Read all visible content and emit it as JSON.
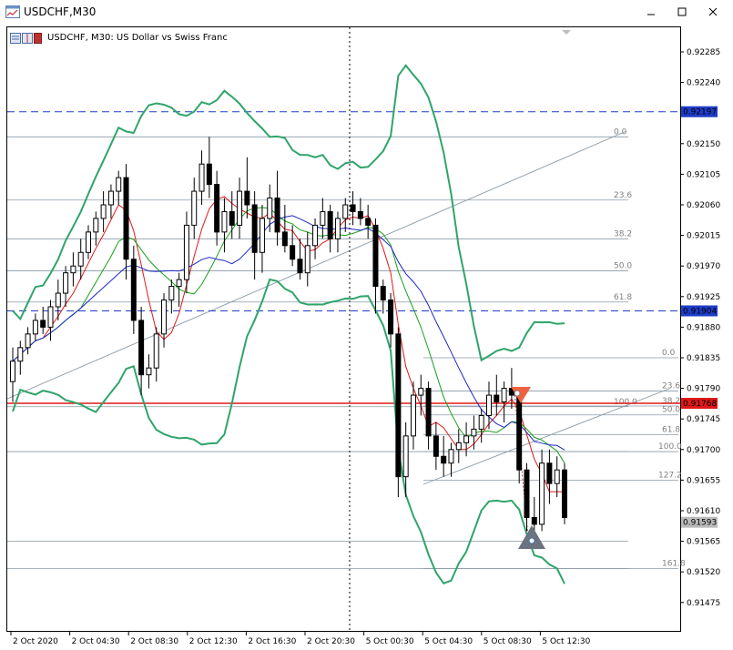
{
  "window": {
    "title": "USDCHF,M30"
  },
  "chart": {
    "header_text": "USDCHF, M30:  US Dollar vs Swiss Franc"
  },
  "chart_data": {
    "type": "candlestick",
    "symbol": "USDCHF",
    "timeframe": "M30",
    "y_ticks": [
      "0.92285",
      "0.92240",
      "0.92150",
      "0.92105",
      "0.92060",
      "0.92015",
      "0.91970",
      "0.91925",
      "0.91880",
      "0.91835",
      "0.91790",
      "0.91745",
      "0.91700",
      "0.91655",
      "0.91610",
      "0.91565",
      "0.91520",
      "0.91475"
    ],
    "x_ticks": [
      "2 Oct 2020",
      "2 Oct 04:30",
      "2 Oct 08:30",
      "2 Oct 12:30",
      "2 Oct 16:30",
      "2 Oct 20:30",
      "5 Oct 00:30",
      "5 Oct 04:30",
      "5 Oct 08:30",
      "5 Oct 12:30"
    ],
    "price_tags": [
      {
        "value": "0.92197",
        "color": "#1e3cc8"
      },
      {
        "value": "0.91904",
        "color": "#1e3cc8"
      },
      {
        "value": "0.91768",
        "color": "#e01818"
      },
      {
        "value": "0.91593",
        "color": "#bbbbbb"
      }
    ],
    "fib_levels_1": [
      "0.0",
      "23.6",
      "38.2",
      "50.0",
      "61.8",
      "100.0"
    ],
    "fib_levels_2": [
      "0.0",
      "23.6",
      "38.2",
      "50.0",
      "61.8",
      "100.0",
      "127.2",
      "161.8"
    ],
    "extension_labels": [
      "100.0",
      "127.2",
      "161.8"
    ],
    "candles": [
      [
        0.918,
        0.9185,
        0.9177,
        0.9183
      ],
      [
        0.9183,
        0.9186,
        0.9181,
        0.9185
      ],
      [
        0.9185,
        0.9188,
        0.9184,
        0.9187
      ],
      [
        0.9187,
        0.919,
        0.9186,
        0.9189
      ],
      [
        0.9189,
        0.9191,
        0.9187,
        0.9188
      ],
      [
        0.9188,
        0.9192,
        0.9186,
        0.9191
      ],
      [
        0.9191,
        0.9195,
        0.9189,
        0.9193
      ],
      [
        0.9193,
        0.9197,
        0.9191,
        0.9196
      ],
      [
        0.9196,
        0.9199,
        0.9194,
        0.9197
      ],
      [
        0.9197,
        0.9201,
        0.9195,
        0.9199
      ],
      [
        0.9199,
        0.9203,
        0.9198,
        0.9202
      ],
      [
        0.9202,
        0.9205,
        0.92,
        0.9204
      ],
      [
        0.9204,
        0.9208,
        0.9202,
        0.9206
      ],
      [
        0.9206,
        0.9209,
        0.9204,
        0.9208
      ],
      [
        0.9208,
        0.9211,
        0.9206,
        0.921
      ],
      [
        0.921,
        0.9212,
        0.9195,
        0.9198
      ],
      [
        0.9198,
        0.92,
        0.9187,
        0.9189
      ],
      [
        0.9189,
        0.9191,
        0.9178,
        0.9181
      ],
      [
        0.9181,
        0.9184,
        0.9179,
        0.9182
      ],
      [
        0.9182,
        0.9188,
        0.918,
        0.9187
      ],
      [
        0.9187,
        0.9193,
        0.9185,
        0.9192
      ],
      [
        0.9192,
        0.9195,
        0.919,
        0.9194
      ],
      [
        0.9194,
        0.9196,
        0.9191,
        0.9195
      ],
      [
        0.9195,
        0.9205,
        0.9193,
        0.9203
      ],
      [
        0.9203,
        0.921,
        0.9201,
        0.9208
      ],
      [
        0.9208,
        0.9214,
        0.9206,
        0.9212
      ],
      [
        0.9212,
        0.9216,
        0.9207,
        0.9209
      ],
      [
        0.9209,
        0.9211,
        0.92,
        0.9202
      ],
      [
        0.9202,
        0.9207,
        0.9199,
        0.9205
      ],
      [
        0.9205,
        0.9208,
        0.9201,
        0.9203
      ],
      [
        0.9203,
        0.921,
        0.9201,
        0.9208
      ],
      [
        0.9208,
        0.9213,
        0.9204,
        0.9206
      ],
      [
        0.9206,
        0.9208,
        0.9195,
        0.9199
      ],
      [
        0.9199,
        0.9206,
        0.9196,
        0.9204
      ],
      [
        0.9204,
        0.9209,
        0.9202,
        0.9207
      ],
      [
        0.9207,
        0.9211,
        0.92,
        0.9202
      ],
      [
        0.9202,
        0.9206,
        0.9199,
        0.92
      ],
      [
        0.92,
        0.9203,
        0.9197,
        0.9198
      ],
      [
        0.9198,
        0.9201,
        0.9195,
        0.9196
      ],
      [
        0.9196,
        0.9202,
        0.9194,
        0.92
      ],
      [
        0.92,
        0.9204,
        0.9198,
        0.9203
      ],
      [
        0.9203,
        0.9207,
        0.9201,
        0.9205
      ],
      [
        0.9205,
        0.9206,
        0.9199,
        0.9201
      ],
      [
        0.9201,
        0.9205,
        0.9199,
        0.9204
      ],
      [
        0.9204,
        0.9207,
        0.9202,
        0.9206
      ],
      [
        0.9206,
        0.9208,
        0.9203,
        0.9205
      ],
      [
        0.9205,
        0.9207,
        0.9203,
        0.9204
      ],
      [
        0.9204,
        0.9206,
        0.9201,
        0.9203
      ],
      [
        0.9203,
        0.9204,
        0.919,
        0.9194
      ],
      [
        0.9194,
        0.9195,
        0.919,
        0.9192
      ],
      [
        0.9192,
        0.9193,
        0.9185,
        0.9187
      ],
      [
        0.9187,
        0.9188,
        0.9163,
        0.9166
      ],
      [
        0.9166,
        0.9174,
        0.9163,
        0.9172
      ],
      [
        0.9172,
        0.918,
        0.917,
        0.9178
      ],
      [
        0.9178,
        0.9181,
        0.9175,
        0.9179
      ],
      [
        0.9179,
        0.918,
        0.917,
        0.9172
      ],
      [
        0.9172,
        0.9174,
        0.9167,
        0.9169
      ],
      [
        0.9169,
        0.9172,
        0.9166,
        0.9168
      ],
      [
        0.9168,
        0.9171,
        0.9166,
        0.917
      ],
      [
        0.917,
        0.9173,
        0.9168,
        0.9171
      ],
      [
        0.9171,
        0.9174,
        0.9169,
        0.9172
      ],
      [
        0.9172,
        0.9175,
        0.917,
        0.9173
      ],
      [
        0.9173,
        0.9176,
        0.9171,
        0.9175
      ],
      [
        0.9175,
        0.918,
        0.9173,
        0.9178
      ],
      [
        0.9178,
        0.9181,
        0.9175,
        0.9177
      ],
      [
        0.9177,
        0.918,
        0.9174,
        0.9179
      ],
      [
        0.9179,
        0.9182,
        0.9176,
        0.9178
      ],
      [
        0.9178,
        0.9179,
        0.9165,
        0.9167
      ],
      [
        0.9167,
        0.9168,
        0.9158,
        0.916
      ],
      [
        0.916,
        0.9163,
        0.9157,
        0.9159
      ],
      [
        0.9159,
        0.917,
        0.9158,
        0.9168
      ],
      [
        0.9168,
        0.917,
        0.9162,
        0.9165
      ],
      [
        0.9165,
        0.9169,
        0.9163,
        0.9167
      ],
      [
        0.9167,
        0.9168,
        0.9159,
        0.916
      ]
    ]
  }
}
